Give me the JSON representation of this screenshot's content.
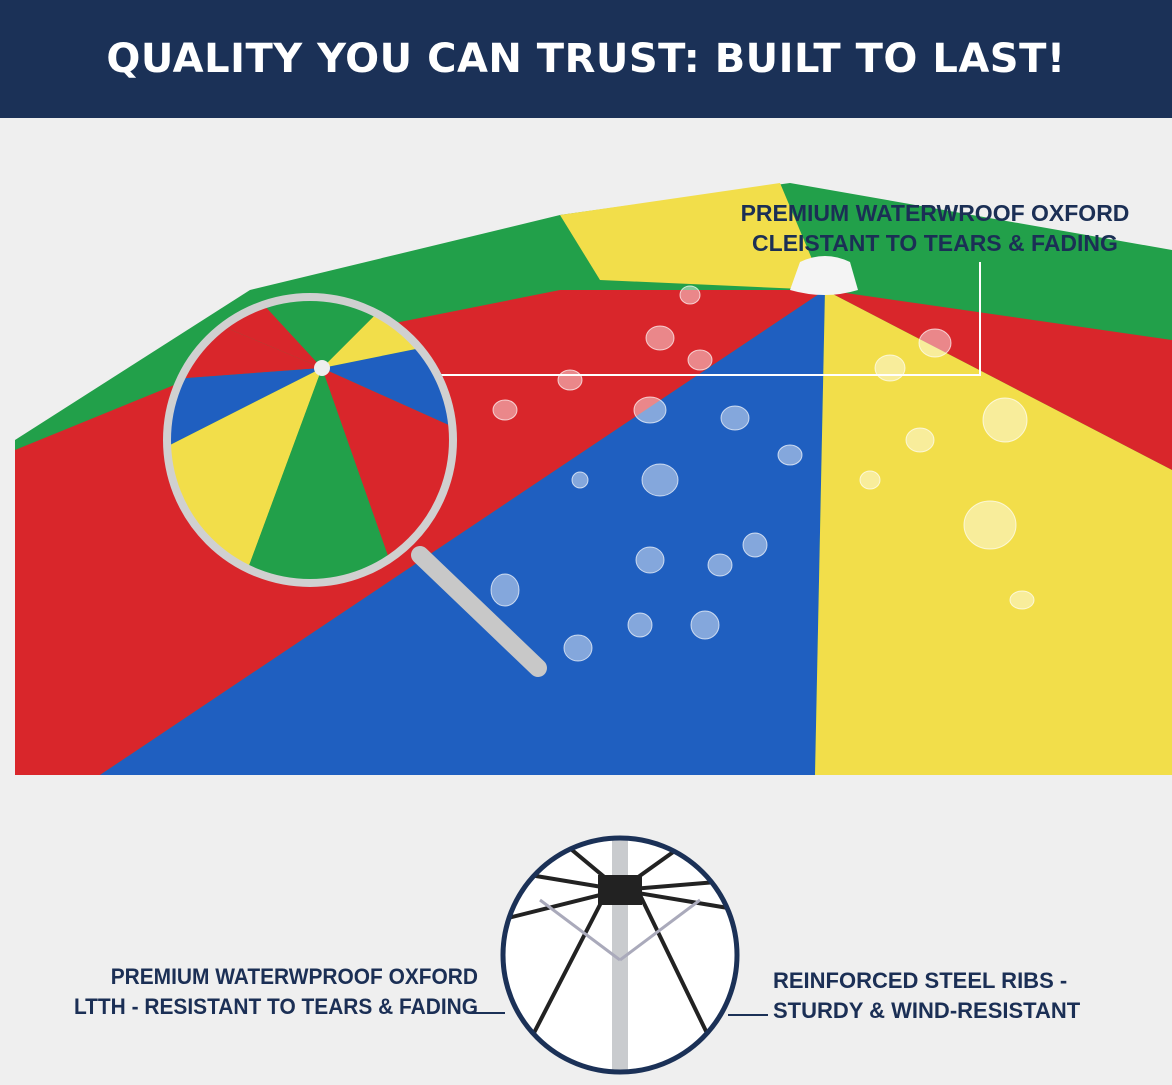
{
  "header": {
    "title": "QUALITY YOU CAN TRUST: BUILT TO LAST!"
  },
  "callouts": {
    "fabric_top": {
      "line1": "PREMIUM WATERWROOF OXFORD",
      "line2": "CLEISTANT TO TEARS & FADING"
    },
    "fabric_bottom": {
      "line1": "PREMIUM WATERWPROOF OXFORD",
      "line2": "LTTH - RESISTANT TO TEARS & FADING"
    },
    "ribs": {
      "line1": "REINFORCED STEEL RIBS -",
      "line2": "STURDY & WIND-RESISTANT"
    }
  },
  "colors": {
    "navy": "#1b3157",
    "red": "#d9262b",
    "blue": "#1f5fc0",
    "yellow": "#f2de4a",
    "green": "#22a04a"
  }
}
